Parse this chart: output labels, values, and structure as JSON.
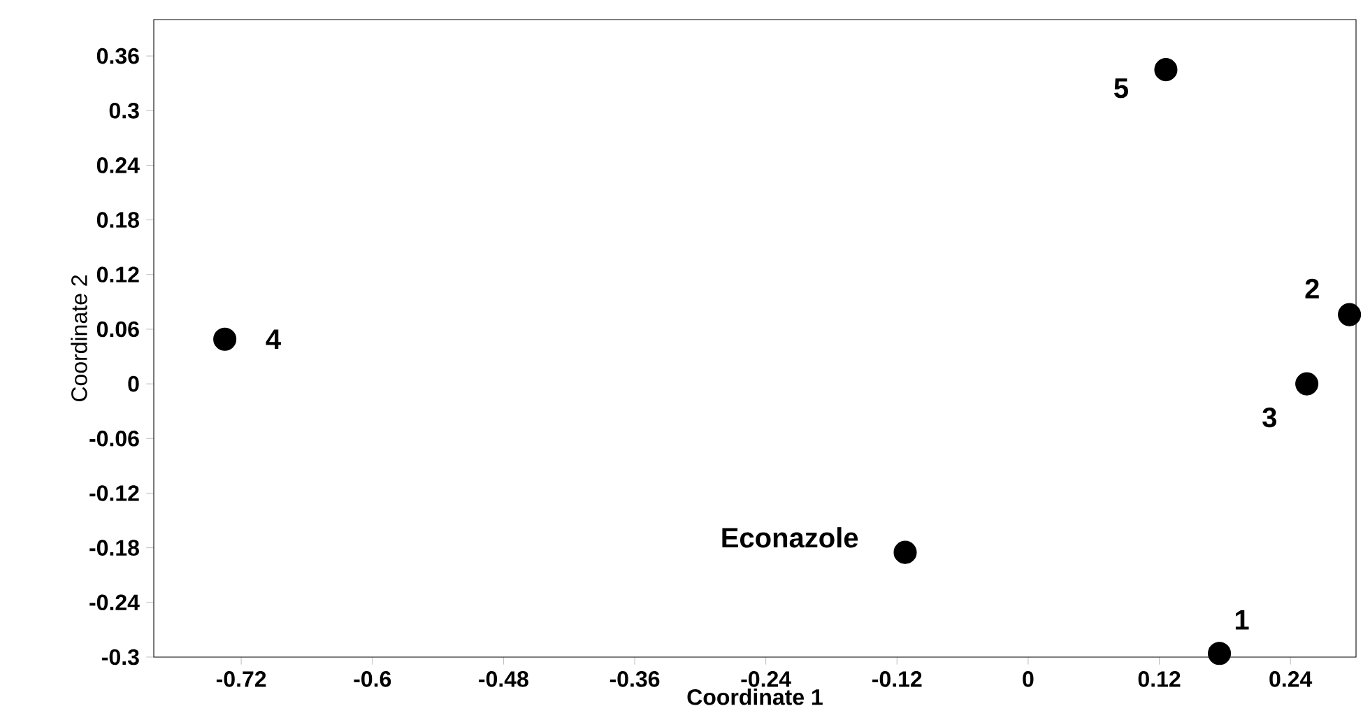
{
  "chart_data": {
    "type": "scatter",
    "xlabel": "Coordinate 1",
    "ylabel": "Coordinate 2",
    "x": [
      0.175,
      0.294,
      0.255,
      -0.735,
      0.126,
      -0.1125
    ],
    "values": [
      -0.296,
      0.076,
      0.0,
      0.049,
      0.345,
      -0.185
    ],
    "color": "#000000",
    "marker": "circle",
    "xlim": [
      -0.8,
      0.3
    ],
    "ylim": [
      -0.3,
      0.4
    ],
    "xticks": [
      -0.72,
      -0.6,
      -0.48,
      -0.36,
      -0.24,
      -0.12,
      0,
      0.12,
      0.24
    ],
    "yticks": [
      -0.3,
      -0.24,
      -0.18,
      -0.12,
      -0.06,
      0,
      0.06,
      0.12,
      0.18,
      0.24,
      0.3,
      0.36
    ],
    "annotations": [
      {
        "text": "1",
        "x": 0.175,
        "y": -0.296
      },
      {
        "text": "2",
        "x": 0.294,
        "y": 0.076
      },
      {
        "text": "3",
        "x": 0.255,
        "y": 0.0
      },
      {
        "text": "4",
        "x": -0.735,
        "y": 0.049
      },
      {
        "text": "5",
        "x": 0.126,
        "y": 0.345
      },
      {
        "text": "Econazole",
        "x": -0.1125,
        "y": -0.185
      }
    ],
    "grid": false
  }
}
